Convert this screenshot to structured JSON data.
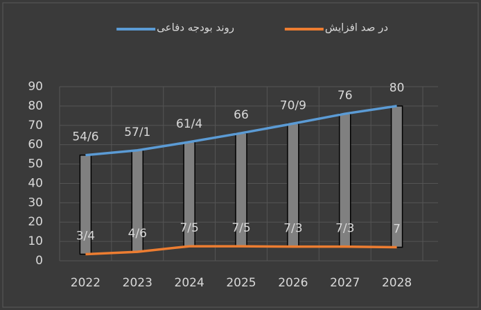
{
  "chart_data": {
    "type": "line",
    "categories": [
      "2022",
      "2023",
      "2024",
      "2025",
      "2026",
      "2027",
      "2028"
    ],
    "series": [
      {
        "name": "روند بودجه دفاعی",
        "color": "#5b9bd5",
        "values": [
          54.6,
          57.1,
          61.4,
          66,
          70.9,
          76,
          80
        ],
        "value_labels": [
          "54/6",
          "57/1",
          "61/4",
          "66",
          "70/9",
          "76",
          "80"
        ]
      },
      {
        "name": "در صد افزایش",
        "color": "#ed7d31",
        "values": [
          3.4,
          4.6,
          7.5,
          7.5,
          7.3,
          7.3,
          7
        ],
        "value_labels": [
          "3/4",
          "4/6",
          "7/5",
          "7/5",
          "7/3",
          "7/3",
          "7"
        ]
      }
    ],
    "ylim": [
      0,
      90
    ],
    "yticks": [
      0,
      10,
      20,
      30,
      40,
      50,
      60,
      70,
      80,
      90
    ],
    "grid": true,
    "legend": "top"
  }
}
